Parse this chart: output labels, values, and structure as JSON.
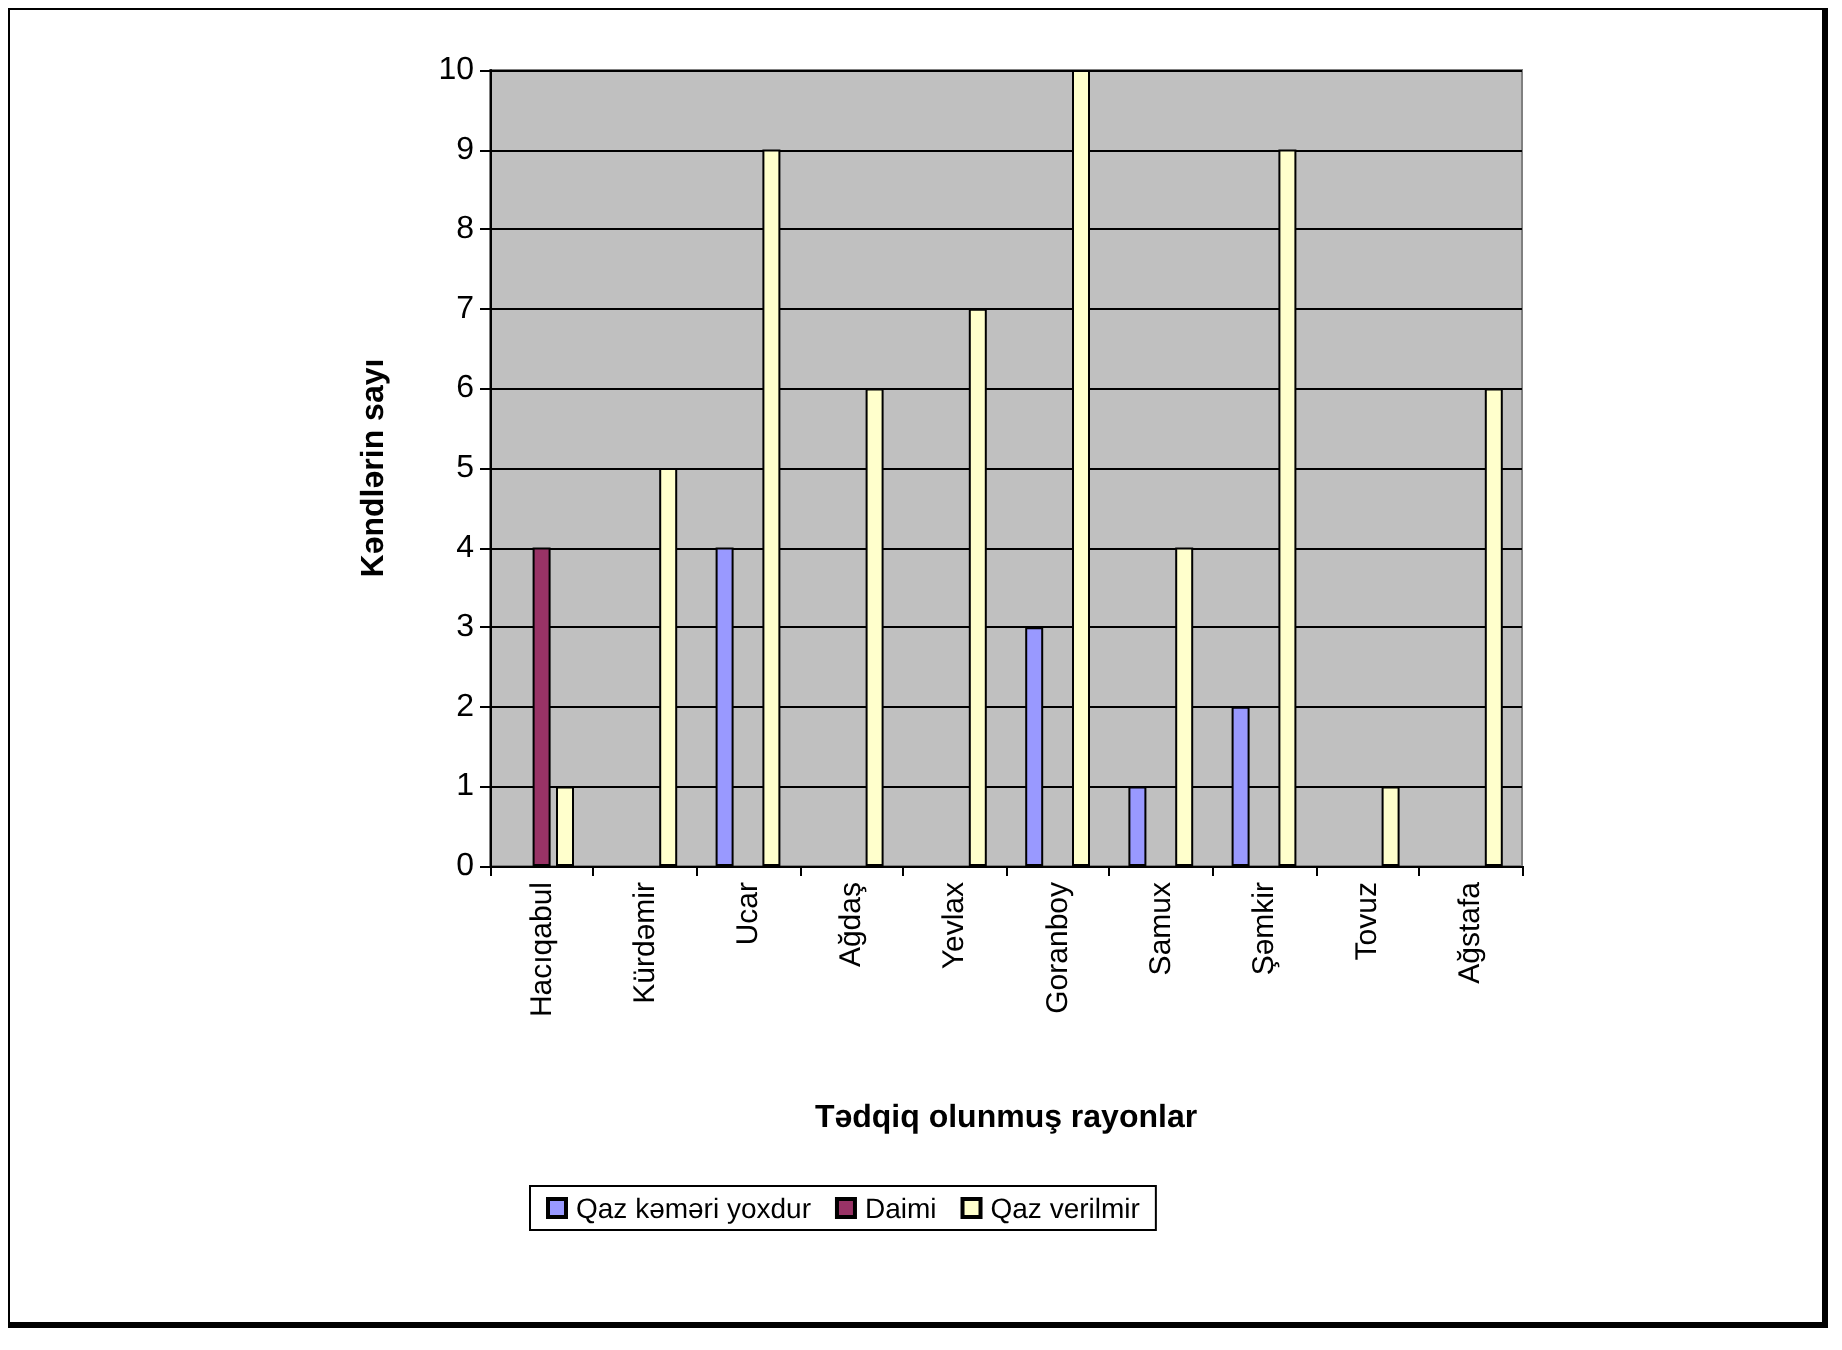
{
  "chart_data": {
    "type": "bar",
    "xlabel": "Tədqiq olunmuş rayonlar",
    "ylabel": "Kəndlərin sayı",
    "categories": [
      "Hacıqabul",
      "Kürdəmir",
      "Ucar",
      "Ağdaş",
      "Yevlax",
      "Goranboy",
      "Samux",
      "Şəmkir",
      "Tovuz",
      "Ağstafa"
    ],
    "series": [
      {
        "name": "Qaz kəməri yoxdur",
        "color": "#9999ff",
        "values": [
          0,
          0,
          4,
          0,
          0,
          3,
          1,
          2,
          0,
          0
        ]
      },
      {
        "name": "Daimi",
        "color": "#993366",
        "values": [
          4,
          0,
          0,
          0,
          0,
          0,
          0,
          0,
          0,
          0
        ]
      },
      {
        "name": "Qaz verilmir",
        "color": "#ffffcc",
        "values": [
          1,
          5,
          9,
          6,
          7,
          10,
          4,
          9,
          1,
          6
        ]
      }
    ],
    "ylim": [
      0,
      10
    ],
    "yticks": [
      0,
      1,
      2,
      3,
      4,
      5,
      6,
      7,
      8,
      9,
      10
    ],
    "grid": "y",
    "legend": "bottom"
  }
}
